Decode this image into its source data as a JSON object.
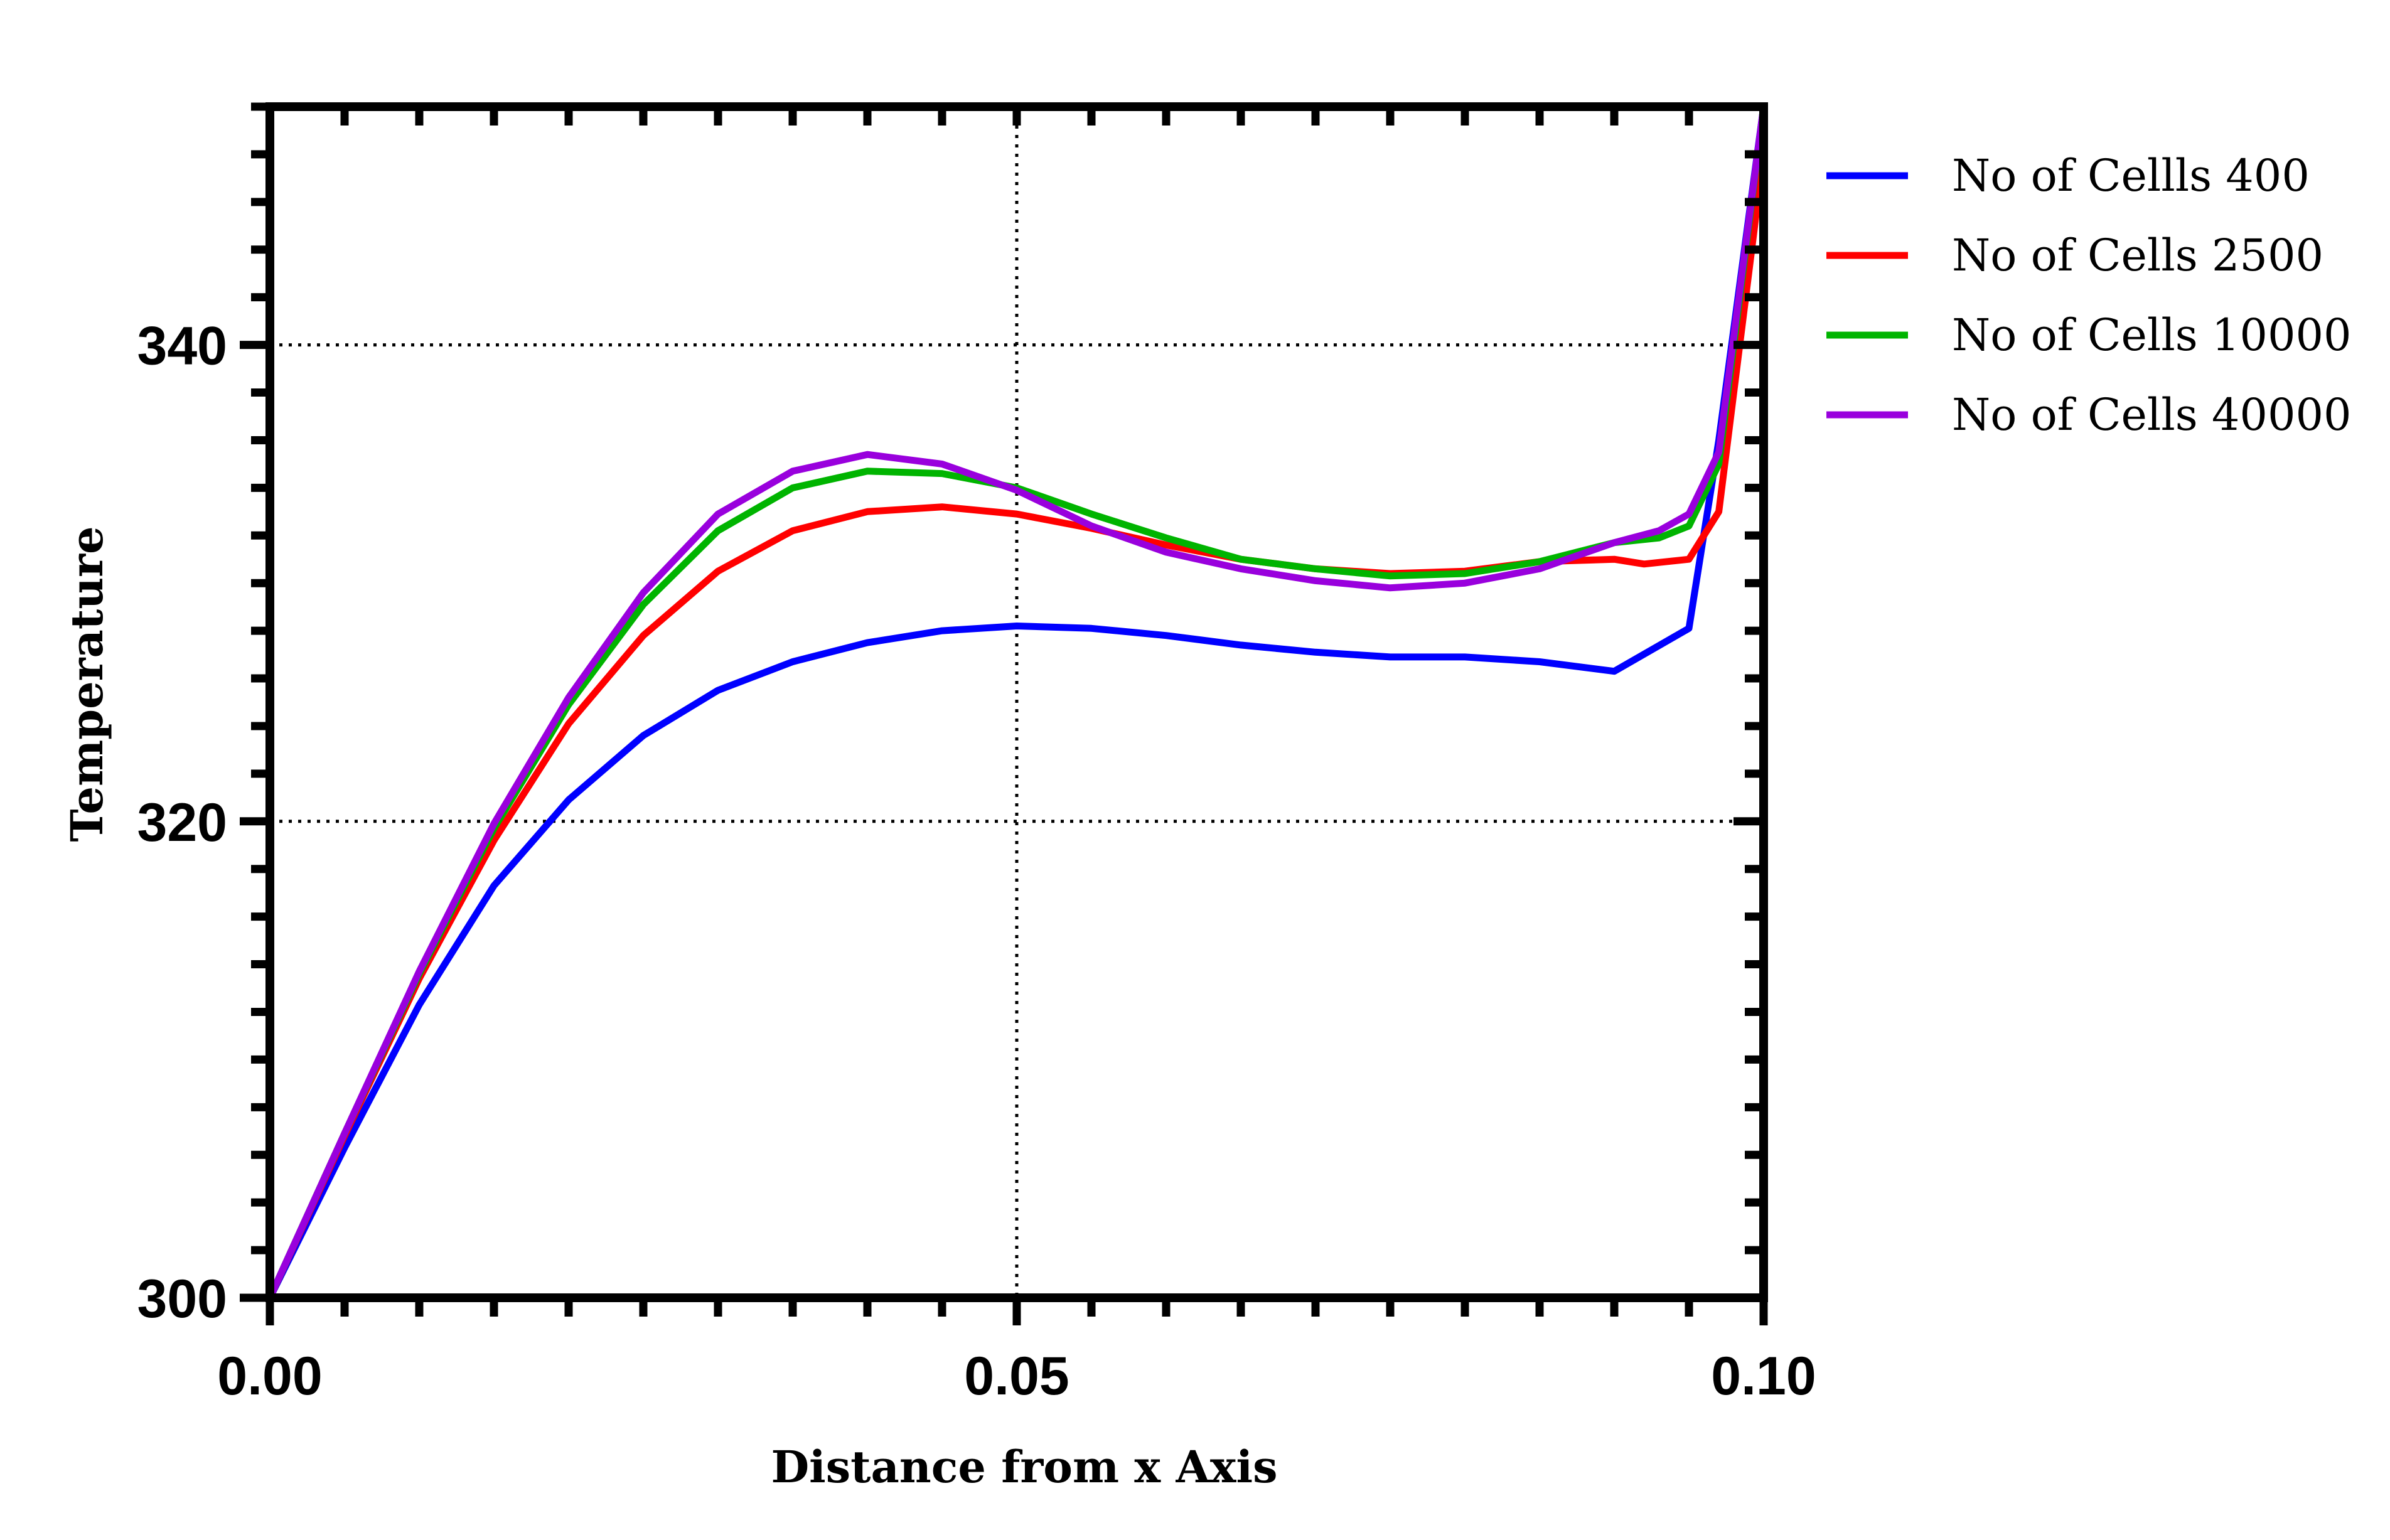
{
  "chart_data": {
    "type": "line",
    "title": "",
    "xlabel": "Distance from x Axis",
    "ylabel": "Temperature",
    "xlim": [
      0,
      0.1
    ],
    "ylim": [
      300,
      350
    ],
    "x_ticks": [
      "0.00",
      "0.05",
      "0.10"
    ],
    "y_ticks": [
      "300",
      "320",
      "340"
    ],
    "grid": "dotted lines at x=0.05, y=320, y=340",
    "legend_position": "right",
    "series": [
      {
        "name": "No of Cellls 400",
        "color": "#0000ff",
        "points": [
          [
            0,
            300
          ],
          [
            0.005,
            306.3
          ],
          [
            0.01,
            312.3
          ],
          [
            0.015,
            317.3
          ],
          [
            0.02,
            320.9
          ],
          [
            0.025,
            323.6
          ],
          [
            0.03,
            325.5
          ],
          [
            0.035,
            326.7
          ],
          [
            0.04,
            327.5
          ],
          [
            0.045,
            328
          ],
          [
            0.05,
            328.2
          ],
          [
            0.055,
            328.1
          ],
          [
            0.06,
            327.8
          ],
          [
            0.065,
            327.4
          ],
          [
            0.07,
            327.1
          ],
          [
            0.075,
            326.9
          ],
          [
            0.08,
            326.9
          ],
          [
            0.085,
            326.7
          ],
          [
            0.09,
            326.3
          ],
          [
            0.095,
            328.1
          ],
          [
            0.097,
            336
          ],
          [
            0.1,
            350
          ]
        ]
      },
      {
        "name": "No of Cells 2500",
        "color": "#ff0000",
        "points": [
          [
            0,
            300
          ],
          [
            0.005,
            306.8
          ],
          [
            0.01,
            313.4
          ],
          [
            0.015,
            319.2
          ],
          [
            0.02,
            324.1
          ],
          [
            0.025,
            327.8
          ],
          [
            0.03,
            330.5
          ],
          [
            0.035,
            332.2
          ],
          [
            0.04,
            333
          ],
          [
            0.045,
            333.2
          ],
          [
            0.05,
            332.9
          ],
          [
            0.055,
            332.3
          ],
          [
            0.06,
            331.6
          ],
          [
            0.065,
            331
          ],
          [
            0.07,
            330.6
          ],
          [
            0.075,
            330.4
          ],
          [
            0.08,
            330.5
          ],
          [
            0.085,
            330.9
          ],
          [
            0.09,
            331
          ],
          [
            0.092,
            330.8
          ],
          [
            0.095,
            331
          ],
          [
            0.097,
            333
          ],
          [
            0.1,
            348
          ]
        ]
      },
      {
        "name": "No of Cells 10000",
        "color": "#00b400",
        "points": [
          [
            0,
            300
          ],
          [
            0.005,
            306.9
          ],
          [
            0.01,
            313.6
          ],
          [
            0.015,
            319.7
          ],
          [
            0.02,
            324.9
          ],
          [
            0.025,
            329.1
          ],
          [
            0.03,
            332.2
          ],
          [
            0.035,
            334
          ],
          [
            0.04,
            334.7
          ],
          [
            0.045,
            334.6
          ],
          [
            0.05,
            334
          ],
          [
            0.055,
            332.9
          ],
          [
            0.06,
            331.9
          ],
          [
            0.065,
            331
          ],
          [
            0.07,
            330.6
          ],
          [
            0.075,
            330.3
          ],
          [
            0.08,
            330.4
          ],
          [
            0.085,
            330.9
          ],
          [
            0.09,
            331.7
          ],
          [
            0.093,
            331.9
          ],
          [
            0.095,
            332.4
          ],
          [
            0.097,
            335
          ],
          [
            0.1,
            350
          ]
        ]
      },
      {
        "name": "No of Cells 40000",
        "color": "#9900dd",
        "points": [
          [
            0,
            300
          ],
          [
            0.005,
            306.9
          ],
          [
            0.01,
            313.7
          ],
          [
            0.015,
            319.9
          ],
          [
            0.02,
            325.2
          ],
          [
            0.025,
            329.6
          ],
          [
            0.03,
            332.9
          ],
          [
            0.035,
            334.7
          ],
          [
            0.04,
            335.4
          ],
          [
            0.045,
            335
          ],
          [
            0.05,
            333.9
          ],
          [
            0.055,
            332.4
          ],
          [
            0.06,
            331.3
          ],
          [
            0.065,
            330.6
          ],
          [
            0.07,
            330.1
          ],
          [
            0.075,
            329.8
          ],
          [
            0.08,
            330
          ],
          [
            0.085,
            330.6
          ],
          [
            0.09,
            331.7
          ],
          [
            0.093,
            332.2
          ],
          [
            0.095,
            332.9
          ],
          [
            0.097,
            335.5
          ],
          [
            0.1,
            350
          ]
        ]
      }
    ]
  }
}
